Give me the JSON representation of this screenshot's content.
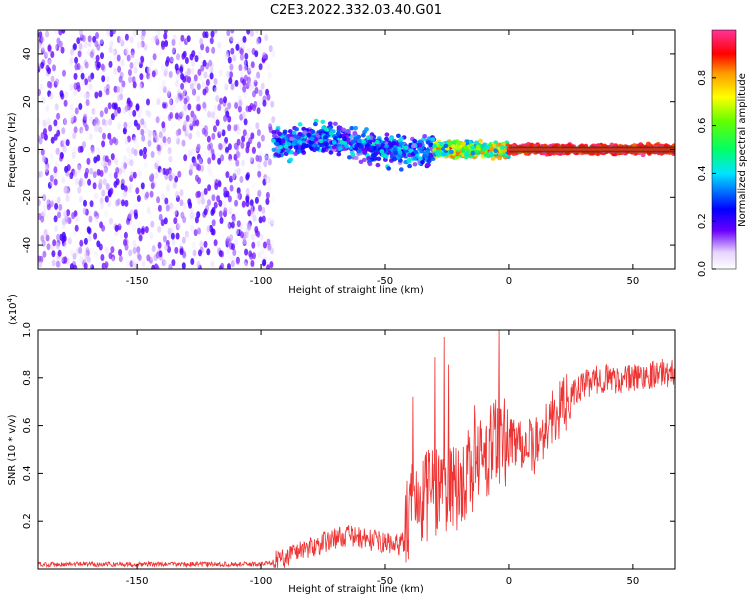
{
  "chart_data": [
    {
      "type": "heatmap",
      "title": "C2E3.2022.332.03.40.G01",
      "xlabel": "Height of straight line (km)",
      "ylabel": "Frequency (Hz)",
      "xlim": [
        -190,
        67
      ],
      "ylim": [
        -50,
        50
      ],
      "xticks": [
        -150,
        -100,
        -50,
        0,
        50
      ],
      "xtick_labels": [
        "-150",
        "-100",
        "-50",
        "0",
        "50"
      ],
      "yticks": [
        -40,
        -20,
        0,
        20,
        40
      ],
      "ytick_labels": [
        "-40",
        "-20",
        "0",
        "20",
        "40"
      ],
      "grid": false,
      "colorbar": {
        "label": "Normalized spectral amplitude",
        "range": [
          0,
          1
        ],
        "ticks": [
          0.0,
          0.2,
          0.4,
          0.6,
          0.8
        ],
        "tick_labels": [
          "0.0",
          "0.2",
          "0.4",
          "0.6",
          "0.8"
        ],
        "colormap": "rainbow"
      },
      "signal_band": {
        "description_regions": [
          {
            "x_range": [
              -190,
              -95
            ],
            "freq_spread_hz": [
              -50,
              50
            ],
            "amplitude": [
              0.0,
              0.2
            ]
          },
          {
            "x_range": [
              -95,
              -30
            ],
            "freq_spread_hz": [
              -5,
              8
            ],
            "amplitude": [
              0.1,
              0.45
            ]
          },
          {
            "x_range": [
              -30,
              0
            ],
            "freq_spread_hz": [
              -3,
              3
            ],
            "amplitude": [
              0.3,
              0.9
            ]
          },
          {
            "x_range": [
              0,
              67
            ],
            "freq_spread_hz": [
              -2,
              2
            ],
            "amplitude": [
              0.85,
              1.0
            ]
          }
        ]
      }
    },
    {
      "type": "line",
      "title": "",
      "xlabel": "Height of straight line (km)",
      "ylabel": "SNR (10 * v/v)",
      "y_multiplier": "(x10^4)",
      "xlim": [
        -190,
        67
      ],
      "ylim": [
        0,
        1.0
      ],
      "xticks": [
        -150,
        -100,
        -50,
        0,
        50
      ],
      "xtick_labels": [
        "-150",
        "-100",
        "-50",
        "0",
        "50"
      ],
      "yticks": [
        0.2,
        0.4,
        0.6,
        0.8,
        1.0
      ],
      "ytick_labels": [
        "0.2",
        "0.4",
        "0.6",
        "0.8",
        "1.0"
      ],
      "grid": false,
      "series": [
        {
          "color": "#ee3333",
          "x": [
            -190,
            -170,
            -150,
            -130,
            -110,
            -100,
            -95,
            -90,
            -85,
            -80,
            -75,
            -70,
            -65,
            -60,
            -55,
            -50,
            -45,
            -42,
            -40,
            -35,
            -30,
            -25,
            -20,
            -15,
            -10,
            -5,
            0,
            5,
            10,
            15,
            20,
            25,
            30,
            35,
            40,
            45,
            50,
            55,
            60,
            67
          ],
          "values": [
            0.02,
            0.02,
            0.02,
            0.02,
            0.02,
            0.02,
            0.03,
            0.05,
            0.08,
            0.09,
            0.11,
            0.13,
            0.14,
            0.13,
            0.12,
            0.11,
            0.1,
            0.12,
            0.24,
            0.27,
            0.33,
            0.36,
            0.34,
            0.42,
            0.47,
            0.52,
            0.55,
            0.54,
            0.5,
            0.6,
            0.66,
            0.72,
            0.77,
            0.79,
            0.8,
            0.79,
            0.8,
            0.81,
            0.82,
            0.82
          ]
        }
      ]
    }
  ]
}
